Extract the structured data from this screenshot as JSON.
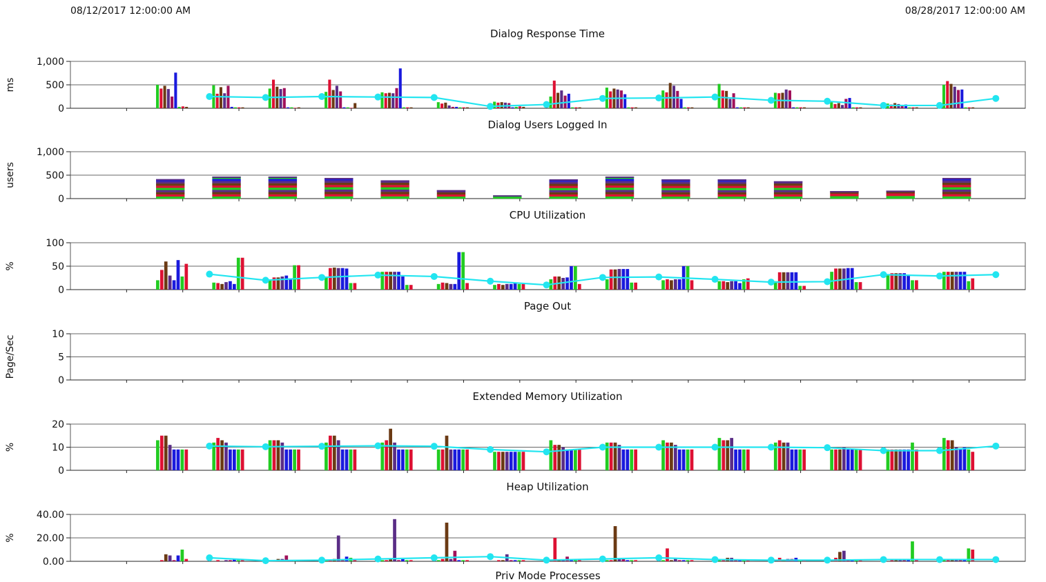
{
  "header": {
    "start_date": "08/12/2017 12:00:00 AM",
    "end_date": "08/28/2017 12:00:00 AM"
  },
  "footer_label": "Priv Mode Processes",
  "colors": {
    "green": "#22cc22",
    "red": "#dd1133",
    "brown": "#6b3a14",
    "purple": "#5a2d86",
    "blue": "#1a1add",
    "magenta": "#a0105a",
    "average": "#22e5f0"
  },
  "x_axis": {
    "days": 17,
    "data_days": 15
  },
  "chart_data": [
    {
      "type": "bar",
      "title": "Dialog Response Time",
      "ylabel": "ms",
      "ticks": [
        "0",
        "500",
        "1,000"
      ],
      "tick_values": [
        0,
        500,
        1000
      ],
      "ylim": [
        0,
        1000
      ],
      "bar_colors": [
        "green",
        "red",
        "brown",
        "purple",
        "magenta",
        "blue"
      ],
      "bars": [
        [
          500,
          420,
          480,
          410,
          250,
          760,
          30,
          40,
          30
        ],
        [
          490,
          310,
          450,
          320,
          480,
          30,
          20,
          20,
          20
        ],
        [
          420,
          610,
          460,
          410,
          430,
          20,
          20,
          10,
          20
        ],
        [
          350,
          610,
          390,
          480,
          360,
          20,
          20,
          10,
          110
        ],
        [
          340,
          320,
          330,
          320,
          430,
          850,
          20,
          20,
          20
        ],
        [
          130,
          100,
          120,
          60,
          30,
          30,
          20,
          20,
          20
        ],
        [
          140,
          120,
          130,
          120,
          110,
          20,
          30,
          40,
          30
        ],
        [
          250,
          590,
          330,
          380,
          270,
          310,
          20,
          20,
          20
        ],
        [
          440,
          360,
          420,
          400,
          380,
          300,
          20,
          20,
          20
        ],
        [
          380,
          340,
          540,
          480,
          370,
          200,
          20,
          20,
          20
        ],
        [
          520,
          380,
          370,
          200,
          320,
          20,
          20,
          20,
          20
        ],
        [
          330,
          320,
          330,
          400,
          380,
          20,
          20,
          20,
          20
        ],
        [
          130,
          90,
          110,
          70,
          200,
          220,
          20,
          20,
          20
        ],
        [
          100,
          80,
          110,
          90,
          70,
          80,
          20,
          20,
          20
        ],
        [
          500,
          580,
          520,
          460,
          390,
          400,
          20,
          20,
          20
        ]
      ],
      "average": [
        250,
        230,
        250,
        240,
        230,
        40,
        80,
        210,
        220,
        240,
        170,
        150,
        60,
        60,
        210
      ],
      "grid": true
    },
    {
      "type": "bar",
      "title": "Dialog Users Logged In",
      "ylabel": "users",
      "ticks": [
        "0",
        "500",
        "1,000"
      ],
      "tick_values": [
        0,
        500,
        1000
      ],
      "ylim": [
        0,
        1000
      ],
      "stacked": [
        415,
        470,
        470,
        440,
        390,
        180,
        70,
        410,
        470,
        410,
        410,
        370,
        160,
        170,
        440
      ],
      "grid": true
    },
    {
      "type": "bar",
      "title": "CPU Utilization",
      "ylabel": "%",
      "ticks": [
        "0",
        "50",
        "100"
      ],
      "tick_values": [
        0,
        50,
        100
      ],
      "ylim": [
        0,
        100
      ],
      "bar_colors": [
        "green",
        "red",
        "brown",
        "purple",
        "blue",
        "blue"
      ],
      "bars": [
        [
          20,
          42,
          60,
          30,
          20,
          63,
          28,
          55
        ],
        [
          15,
          14,
          12,
          16,
          18,
          12,
          68,
          68
        ],
        [
          20,
          26,
          26,
          28,
          30,
          22,
          52,
          52
        ],
        [
          27,
          46,
          47,
          46,
          46,
          45,
          14,
          14
        ],
        [
          38,
          38,
          38,
          38,
          38,
          28,
          10,
          10
        ],
        [
          12,
          15,
          14,
          12,
          12,
          80,
          80,
          14
        ],
        [
          10,
          12,
          10,
          12,
          12,
          15,
          12,
          12
        ],
        [
          22,
          28,
          28,
          25,
          26,
          50,
          50,
          12
        ],
        [
          22,
          43,
          43,
          44,
          44,
          44,
          15,
          15
        ],
        [
          20,
          22,
          20,
          22,
          22,
          50,
          50,
          20
        ],
        [
          18,
          18,
          16,
          18,
          18,
          14,
          22,
          24
        ],
        [
          18,
          37,
          37,
          37,
          37,
          37,
          8,
          8
        ],
        [
          38,
          45,
          45,
          45,
          46,
          46,
          16,
          16
        ],
        [
          32,
          35,
          35,
          35,
          35,
          30,
          20,
          20
        ],
        [
          38,
          38,
          38,
          38,
          38,
          38,
          18,
          24
        ]
      ],
      "average": [
        33,
        20,
        26,
        31,
        28,
        18,
        10,
        26,
        27,
        22,
        16,
        17,
        32,
        29,
        32
      ],
      "grid": true
    },
    {
      "type": "bar",
      "title": "Page Out",
      "ylabel": "Page/Sec",
      "ticks": [
        "0",
        "5",
        "10"
      ],
      "tick_values": [
        0,
        5,
        10
      ],
      "ylim": [
        0,
        10
      ],
      "bars": [],
      "average": [],
      "grid": true
    },
    {
      "type": "bar",
      "title": "Extended Memory Utilization",
      "ylabel": "%",
      "ticks": [
        "0",
        "10",
        "20"
      ],
      "tick_values": [
        0,
        10,
        20
      ],
      "ylim": [
        0,
        20
      ],
      "bar_colors": [
        "green",
        "red",
        "brown",
        "purple",
        "blue",
        "blue"
      ],
      "bars": [
        [
          13,
          15,
          15,
          11,
          9,
          9,
          9,
          9
        ],
        [
          12,
          14,
          13,
          12,
          9,
          9,
          9,
          9
        ],
        [
          13,
          13,
          13,
          12,
          9,
          9,
          9,
          9
        ],
        [
          12,
          15,
          15,
          13,
          9,
          9,
          9,
          9
        ],
        [
          12,
          13,
          18,
          12,
          9,
          9,
          9,
          9
        ],
        [
          9,
          9,
          15,
          9,
          9,
          9,
          9,
          9
        ],
        [
          8,
          8,
          8,
          8,
          8,
          8,
          8,
          8
        ],
        [
          13,
          11,
          11,
          10,
          9,
          9,
          9,
          9
        ],
        [
          12,
          12,
          12,
          11,
          9,
          9,
          9,
          9
        ],
        [
          13,
          12,
          12,
          11,
          9,
          9,
          9,
          9
        ],
        [
          14,
          13,
          13,
          14,
          9,
          9,
          9,
          9
        ],
        [
          12,
          13,
          12,
          12,
          9,
          9,
          9,
          9
        ],
        [
          9,
          9,
          9,
          10,
          9,
          9,
          9,
          9
        ],
        [
          9,
          9,
          9,
          9,
          9,
          9,
          12,
          9
        ],
        [
          14,
          13,
          13,
          10,
          9,
          10,
          9,
          8
        ]
      ],
      "average": [
        10.5,
        10.2,
        10.4,
        10.6,
        10.4,
        9,
        8,
        10,
        10,
        10,
        10,
        9.8,
        8.5,
        8.5,
        10.5
      ],
      "grid": true
    },
    {
      "type": "bar",
      "title": "Heap Utilization",
      "ylabel": "%",
      "ticks": [
        "0.00",
        "20.00",
        "40.00"
      ],
      "tick_values": [
        0,
        20,
        40
      ],
      "ylim": [
        0,
        40
      ],
      "bar_colors": [
        "green",
        "red",
        "brown",
        "purple",
        "magenta",
        "blue"
      ],
      "bars": [
        [
          0,
          1,
          6,
          5,
          1,
          5,
          10,
          2
        ],
        [
          0,
          1,
          0,
          1,
          1,
          2,
          1,
          1
        ],
        [
          0,
          1,
          2,
          2,
          5,
          1,
          1,
          0
        ],
        [
          1,
          1,
          2,
          22,
          1,
          4,
          3,
          1
        ],
        [
          1,
          1,
          2,
          36,
          1,
          2,
          1,
          1
        ],
        [
          1,
          2,
          33,
          2,
          9,
          1,
          1,
          1
        ],
        [
          0,
          1,
          1,
          6,
          1,
          1,
          1,
          1
        ],
        [
          0,
          20,
          1,
          1,
          4,
          1,
          1,
          1
        ],
        [
          1,
          1,
          30,
          2,
          2,
          1,
          1,
          1
        ],
        [
          1,
          11,
          1,
          2,
          1,
          1,
          1,
          1
        ],
        [
          1,
          1,
          3,
          3,
          1,
          1,
          1,
          1
        ],
        [
          0,
          3,
          1,
          2,
          2,
          3,
          1,
          1
        ],
        [
          0,
          3,
          8,
          9,
          1,
          1,
          1,
          1
        ],
        [
          0,
          1,
          1,
          1,
          1,
          1,
          17,
          1
        ],
        [
          1,
          1,
          1,
          1,
          1,
          1,
          11,
          10
        ]
      ],
      "average": [
        3,
        0.5,
        1,
        2,
        3,
        4,
        1,
        2,
        3,
        1.5,
        1,
        1,
        1.5,
        1.5,
        1.5
      ],
      "grid": true
    }
  ]
}
